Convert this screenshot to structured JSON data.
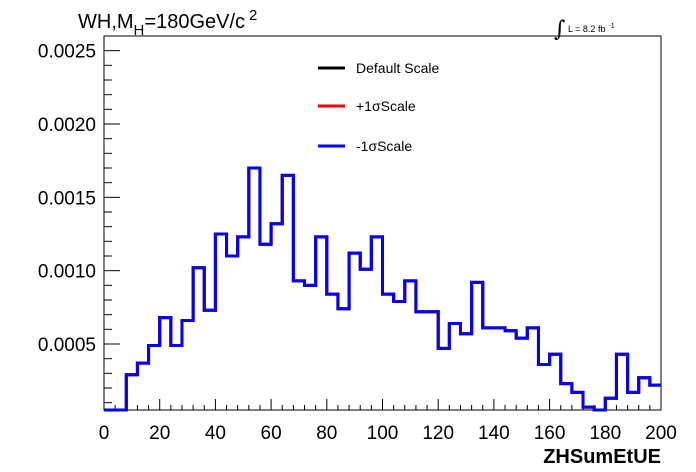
{
  "chart_data": {
    "type": "step",
    "title": "WH,M",
    "title_sub": "H",
    "title_rest": "=180GeV/c",
    "title_sup": "2",
    "lumi_label": "L = 8.2 fb",
    "lumi_sup": "-1",
    "xlabel": "ZHSumEtUE",
    "ylabel": "",
    "xlim": [
      0,
      200
    ],
    "ylim": [
      5e-05,
      0.0026
    ],
    "x_ticks": [
      0,
      20,
      40,
      60,
      80,
      100,
      120,
      140,
      160,
      180,
      200
    ],
    "x_tick_labels": [
      "0",
      "20",
      "40",
      "60",
      "80",
      "100",
      "120",
      "140",
      "160",
      "180",
      "200"
    ],
    "y_ticks": [
      0.0005,
      0.001,
      0.0015,
      0.002,
      0.0025
    ],
    "y_tick_labels": [
      "0.0005",
      "0.0010",
      "0.0015",
      "0.0020",
      "0.0025"
    ],
    "grid": false,
    "legend_position": "top-center",
    "bin_edges": [
      0,
      4,
      8,
      12,
      16,
      20,
      24,
      28,
      32,
      36,
      40,
      44,
      48,
      52,
      56,
      60,
      64,
      68,
      72,
      76,
      80,
      84,
      88,
      92,
      96,
      100,
      104,
      108,
      112,
      116,
      120,
      124,
      128,
      132,
      136,
      140,
      144,
      148,
      152,
      156,
      160,
      164,
      168,
      172,
      176,
      180,
      184,
      188,
      192,
      196,
      200
    ],
    "series": [
      {
        "name": "Default Scale",
        "color": "#000000",
        "values": [
          5e-05,
          5e-05,
          0.00029,
          0.00037,
          0.00049,
          0.00068,
          0.00049,
          0.00066,
          0.00102,
          0.00073,
          0.00125,
          0.0011,
          0.00123,
          0.0017,
          0.00118,
          0.00132,
          0.00165,
          0.00093,
          0.0009,
          0.00123,
          0.00084,
          0.00074,
          0.00112,
          0.00101,
          0.00123,
          0.00084,
          0.00079,
          0.00093,
          0.00072,
          0.00072,
          0.00047,
          0.00064,
          0.00057,
          0.00092,
          0.00061,
          0.00061,
          0.00059,
          0.00054,
          0.00061,
          0.00036,
          0.00043,
          0.00023,
          0.00017,
          7e-05,
          4e-05,
          0.00013,
          0.00043,
          0.00017,
          0.00027,
          0.00022
        ]
      },
      {
        "name": "+1σScale",
        "color": "#ff0000",
        "values": [
          5e-05,
          5e-05,
          0.00029,
          0.00037,
          0.00049,
          0.00068,
          0.00049,
          0.00066,
          0.00102,
          0.00073,
          0.00125,
          0.0011,
          0.00123,
          0.0017,
          0.00118,
          0.00132,
          0.00165,
          0.00093,
          0.0009,
          0.00123,
          0.00084,
          0.00074,
          0.00112,
          0.00101,
          0.00123,
          0.00084,
          0.00079,
          0.00093,
          0.00072,
          0.00072,
          0.00047,
          0.00064,
          0.00057,
          0.00092,
          0.00061,
          0.00061,
          0.00059,
          0.00054,
          0.00061,
          0.00036,
          0.00043,
          0.00023,
          0.00017,
          7e-05,
          4e-05,
          0.00013,
          0.00043,
          0.00017,
          0.00027,
          0.00022
        ]
      },
      {
        "name": "-1σScale",
        "color": "#0000ff",
        "values": [
          5e-05,
          5e-05,
          0.00029,
          0.00037,
          0.00049,
          0.00068,
          0.00049,
          0.00066,
          0.00102,
          0.00073,
          0.00125,
          0.0011,
          0.00123,
          0.0017,
          0.00118,
          0.00132,
          0.00165,
          0.00093,
          0.0009,
          0.00123,
          0.00084,
          0.00074,
          0.00112,
          0.00101,
          0.00123,
          0.00084,
          0.00079,
          0.00093,
          0.00072,
          0.00072,
          0.00047,
          0.00064,
          0.00057,
          0.00092,
          0.00061,
          0.00061,
          0.00059,
          0.00054,
          0.00061,
          0.00036,
          0.00043,
          0.00023,
          0.00017,
          7e-05,
          4e-05,
          0.00013,
          0.00043,
          0.00017,
          0.00027,
          0.00022
        ]
      }
    ]
  }
}
